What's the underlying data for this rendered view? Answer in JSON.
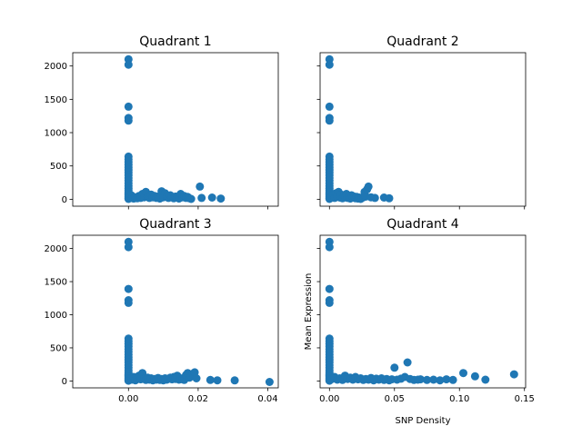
{
  "chart_data": [
    {
      "type": "scatter",
      "title": "Quadrant 1",
      "xlabel": "",
      "ylabel": "",
      "color": "#1f77b4",
      "xlim": [
        -0.016,
        0.043
      ],
      "ylim": [
        -104,
        2200
      ],
      "xticks": [],
      "yticks": [
        0,
        500,
        1000,
        1500,
        2000
      ],
      "ytick_labels": [
        "0",
        "500",
        "1000",
        "1500",
        "2000"
      ],
      "points": [
        [
          0,
          2100
        ],
        [
          0,
          2020
        ],
        [
          0,
          1390
        ],
        [
          0,
          1220
        ],
        [
          0,
          1180
        ],
        [
          0,
          640
        ],
        [
          0,
          600
        ],
        [
          0,
          560
        ],
        [
          0,
          520
        ],
        [
          0,
          480
        ],
        [
          0,
          440
        ],
        [
          0,
          400
        ],
        [
          0,
          360
        ],
        [
          0,
          320
        ],
        [
          0,
          280
        ],
        [
          0,
          240
        ],
        [
          0,
          200
        ],
        [
          0,
          160
        ],
        [
          0,
          130
        ],
        [
          0,
          100
        ],
        [
          0,
          80
        ],
        [
          0,
          60
        ],
        [
          0,
          40
        ],
        [
          0,
          20
        ],
        [
          0,
          5
        ],
        [
          0.0008,
          60
        ],
        [
          0.001,
          20
        ],
        [
          0.0012,
          40
        ],
        [
          0.0015,
          10
        ],
        [
          0.002,
          30
        ],
        [
          0.0025,
          15
        ],
        [
          0.003,
          50
        ],
        [
          0.0035,
          20
        ],
        [
          0.004,
          80
        ],
        [
          0.0045,
          30
        ],
        [
          0.005,
          110
        ],
        [
          0.0055,
          40
        ],
        [
          0.006,
          20
        ],
        [
          0.0065,
          70
        ],
        [
          0.007,
          30
        ],
        [
          0.0075,
          50
        ],
        [
          0.008,
          20
        ],
        [
          0.0085,
          40
        ],
        [
          0.009,
          10
        ],
        [
          0.0095,
          120
        ],
        [
          0.01,
          30
        ],
        [
          0.0105,
          90
        ],
        [
          0.011,
          40
        ],
        [
          0.0115,
          20
        ],
        [
          0.012,
          60
        ],
        [
          0.0125,
          30
        ],
        [
          0.013,
          15
        ],
        [
          0.0135,
          40
        ],
        [
          0.014,
          25
        ],
        [
          0.0145,
          10
        ],
        [
          0.015,
          80
        ],
        [
          0.0155,
          30
        ],
        [
          0.016,
          50
        ],
        [
          0.0165,
          20
        ],
        [
          0.017,
          35
        ],
        [
          0.0175,
          15
        ],
        [
          0.018,
          5
        ],
        [
          0.0205,
          190
        ],
        [
          0.021,
          20
        ],
        [
          0.024,
          25
        ],
        [
          0.0265,
          10
        ]
      ]
    },
    {
      "type": "scatter",
      "title": "Quadrant 2",
      "xlabel": "",
      "ylabel": "",
      "color": "#1f77b4",
      "xlim": [
        -0.0072,
        0.1509
      ],
      "ylim": [
        -104,
        2200
      ],
      "xticks": [],
      "yticks": [],
      "points": [
        [
          0,
          2100
        ],
        [
          0,
          2020
        ],
        [
          0,
          1390
        ],
        [
          0,
          1220
        ],
        [
          0,
          1180
        ],
        [
          0,
          640
        ],
        [
          0,
          600
        ],
        [
          0,
          560
        ],
        [
          0,
          520
        ],
        [
          0,
          480
        ],
        [
          0,
          440
        ],
        [
          0,
          400
        ],
        [
          0,
          360
        ],
        [
          0,
          320
        ],
        [
          0,
          280
        ],
        [
          0,
          240
        ],
        [
          0,
          200
        ],
        [
          0,
          160
        ],
        [
          0,
          130
        ],
        [
          0,
          100
        ],
        [
          0,
          80
        ],
        [
          0,
          60
        ],
        [
          0,
          40
        ],
        [
          0,
          20
        ],
        [
          0,
          5
        ],
        [
          0.002,
          30
        ],
        [
          0.003,
          60
        ],
        [
          0.004,
          20
        ],
        [
          0.005,
          90
        ],
        [
          0.006,
          40
        ],
        [
          0.007,
          110
        ],
        [
          0.008,
          25
        ],
        [
          0.009,
          70
        ],
        [
          0.01,
          15
        ],
        [
          0.011,
          50
        ],
        [
          0.012,
          30
        ],
        [
          0.013,
          80
        ],
        [
          0.014,
          20
        ],
        [
          0.015,
          45
        ],
        [
          0.016,
          10
        ],
        [
          0.017,
          60
        ],
        [
          0.018,
          25
        ],
        [
          0.019,
          40
        ],
        [
          0.02,
          15
        ],
        [
          0.021,
          35
        ],
        [
          0.022,
          10
        ],
        [
          0.023,
          25
        ],
        [
          0.024,
          5
        ],
        [
          0.025,
          20
        ],
        [
          0.026,
          30
        ],
        [
          0.027,
          110
        ],
        [
          0.028,
          40
        ],
        [
          0.029,
          150
        ],
        [
          0.03,
          190
        ],
        [
          0.032,
          30
        ],
        [
          0.035,
          20
        ],
        [
          0.042,
          25
        ],
        [
          0.046,
          15
        ]
      ]
    },
    {
      "type": "scatter",
      "title": "Quadrant 3",
      "xlabel": "",
      "ylabel": "",
      "color": "#1f77b4",
      "xlim": [
        -0.016,
        0.043
      ],
      "ylim": [
        -104,
        2200
      ],
      "xticks": [
        0,
        0.02,
        0.04
      ],
      "xtick_labels": [
        "0.00",
        "0.02",
        "0.04"
      ],
      "yticks": [
        0,
        500,
        1000,
        1500,
        2000
      ],
      "ytick_labels": [
        "0",
        "500",
        "1000",
        "1500",
        "2000"
      ],
      "points": [
        [
          0,
          2100
        ],
        [
          0,
          2020
        ],
        [
          0,
          1390
        ],
        [
          0,
          1220
        ],
        [
          0,
          1180
        ],
        [
          0,
          640
        ],
        [
          0,
          600
        ],
        [
          0,
          560
        ],
        [
          0,
          520
        ],
        [
          0,
          480
        ],
        [
          0,
          440
        ],
        [
          0,
          400
        ],
        [
          0,
          360
        ],
        [
          0,
          320
        ],
        [
          0,
          280
        ],
        [
          0,
          240
        ],
        [
          0,
          200
        ],
        [
          0,
          160
        ],
        [
          0,
          130
        ],
        [
          0,
          100
        ],
        [
          0,
          80
        ],
        [
          0,
          60
        ],
        [
          0,
          40
        ],
        [
          0,
          20
        ],
        [
          0,
          5
        ],
        [
          0.0008,
          40
        ],
        [
          0.001,
          20
        ],
        [
          0.0015,
          60
        ],
        [
          0.002,
          10
        ],
        [
          0.0025,
          35
        ],
        [
          0.003,
          80
        ],
        [
          0.0035,
          25
        ],
        [
          0.004,
          120
        ],
        [
          0.0045,
          30
        ],
        [
          0.005,
          15
        ],
        [
          0.0055,
          50
        ],
        [
          0.006,
          20
        ],
        [
          0.0065,
          40
        ],
        [
          0.007,
          10
        ],
        [
          0.0075,
          30
        ],
        [
          0.008,
          20
        ],
        [
          0.0085,
          45
        ],
        [
          0.009,
          15
        ],
        [
          0.0095,
          30
        ],
        [
          0.01,
          10
        ],
        [
          0.0105,
          40
        ],
        [
          0.011,
          20
        ],
        [
          0.0115,
          35
        ],
        [
          0.012,
          50
        ],
        [
          0.0125,
          25
        ],
        [
          0.013,
          60
        ],
        [
          0.0135,
          30
        ],
        [
          0.014,
          80
        ],
        [
          0.0145,
          20
        ],
        [
          0.015,
          40
        ],
        [
          0.0155,
          25
        ],
        [
          0.016,
          15
        ],
        [
          0.0165,
          90
        ],
        [
          0.017,
          120
        ],
        [
          0.0175,
          50
        ],
        [
          0.018,
          70
        ],
        [
          0.0185,
          110
        ],
        [
          0.019,
          130
        ],
        [
          0.0195,
          40
        ],
        [
          0.0235,
          15
        ],
        [
          0.0255,
          10
        ],
        [
          0.0305,
          8
        ],
        [
          0.0405,
          -15
        ]
      ]
    },
    {
      "type": "scatter",
      "title": "Quadrant 4",
      "xlabel": "SNP Density",
      "ylabel": "Mean Expression",
      "color": "#1f77b4",
      "xlim": [
        -0.0072,
        0.1509
      ],
      "ylim": [
        -104,
        2200
      ],
      "xticks": [
        0,
        0.05,
        0.1,
        0.15
      ],
      "xtick_labels": [
        "0.00",
        "0.05",
        "0.10",
        "0.15"
      ],
      "yticks": [],
      "points": [
        [
          0,
          2100
        ],
        [
          0,
          2020
        ],
        [
          0,
          1390
        ],
        [
          0,
          1220
        ],
        [
          0,
          1180
        ],
        [
          0,
          640
        ],
        [
          0,
          600
        ],
        [
          0,
          560
        ],
        [
          0,
          520
        ],
        [
          0,
          480
        ],
        [
          0,
          440
        ],
        [
          0,
          400
        ],
        [
          0,
          360
        ],
        [
          0,
          320
        ],
        [
          0,
          280
        ],
        [
          0,
          240
        ],
        [
          0,
          200
        ],
        [
          0,
          160
        ],
        [
          0,
          130
        ],
        [
          0,
          100
        ],
        [
          0,
          80
        ],
        [
          0,
          60
        ],
        [
          0,
          40
        ],
        [
          0,
          20
        ],
        [
          0,
          5
        ],
        [
          0.002,
          30
        ],
        [
          0.004,
          60
        ],
        [
          0.006,
          20
        ],
        [
          0.008,
          40
        ],
        [
          0.01,
          15
        ],
        [
          0.012,
          80
        ],
        [
          0.014,
          30
        ],
        [
          0.016,
          50
        ],
        [
          0.018,
          20
        ],
        [
          0.02,
          60
        ],
        [
          0.022,
          25
        ],
        [
          0.024,
          40
        ],
        [
          0.026,
          15
        ],
        [
          0.028,
          30
        ],
        [
          0.03,
          20
        ],
        [
          0.032,
          45
        ],
        [
          0.034,
          10
        ],
        [
          0.036,
          35
        ],
        [
          0.038,
          20
        ],
        [
          0.04,
          40
        ],
        [
          0.042,
          15
        ],
        [
          0.044,
          30
        ],
        [
          0.046,
          10
        ],
        [
          0.048,
          25
        ],
        [
          0.05,
          200
        ],
        [
          0.052,
          20
        ],
        [
          0.055,
          35
        ],
        [
          0.058,
          60
        ],
        [
          0.06,
          280
        ],
        [
          0.062,
          30
        ],
        [
          0.065,
          15
        ],
        [
          0.068,
          20
        ],
        [
          0.07,
          25
        ],
        [
          0.075,
          15
        ],
        [
          0.08,
          20
        ],
        [
          0.085,
          10
        ],
        [
          0.09,
          25
        ],
        [
          0.095,
          15
        ],
        [
          0.103,
          120
        ],
        [
          0.112,
          70
        ],
        [
          0.12,
          20
        ],
        [
          0.142,
          100
        ]
      ]
    }
  ]
}
